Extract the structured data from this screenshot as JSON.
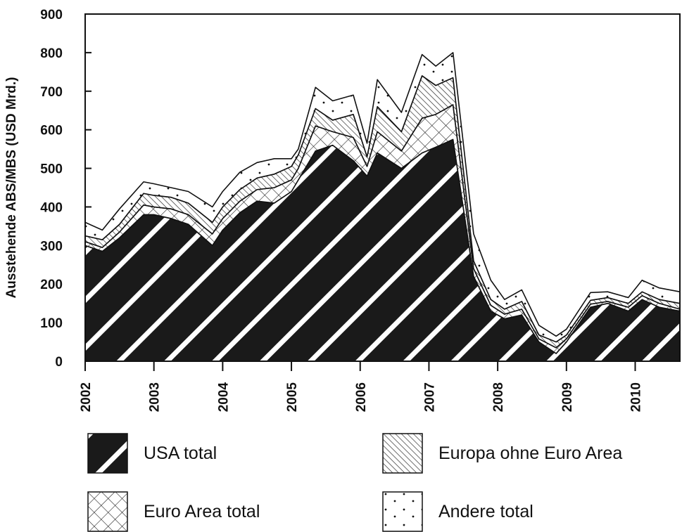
{
  "chart_data": {
    "type": "area",
    "stacked": true,
    "title": "",
    "xlabel": "",
    "ylabel": "Ausstehende ABS/MBS (USD Mrd.)",
    "ylim": [
      0,
      900
    ],
    "yticks": [
      0,
      100,
      200,
      300,
      400,
      500,
      600,
      700,
      800,
      900
    ],
    "xlim": [
      2002,
      2010.65
    ],
    "xticks": [
      "2002",
      "2003",
      "2004",
      "2005",
      "2006",
      "2007",
      "2008",
      "2009",
      "2010"
    ],
    "grid": false,
    "legend_position": "bottom",
    "x": [
      2002.0,
      2002.25,
      2002.5,
      2002.85,
      2003.0,
      2003.25,
      2003.5,
      2003.85,
      2004.0,
      2004.25,
      2004.5,
      2004.75,
      2005.0,
      2005.1,
      2005.35,
      2005.6,
      2005.9,
      2006.1,
      2006.25,
      2006.6,
      2006.9,
      2007.1,
      2007.35,
      2007.65,
      2007.9,
      2008.1,
      2008.35,
      2008.6,
      2008.85,
      2009.0,
      2009.35,
      2009.6,
      2009.9,
      2010.1,
      2010.35,
      2010.65
    ],
    "series": [
      {
        "name": "USA total",
        "values": [
          300,
          285,
          320,
          380,
          380,
          370,
          355,
          300,
          340,
          385,
          415,
          410,
          440,
          470,
          545,
          560,
          520,
          480,
          540,
          500,
          540,
          555,
          575,
          220,
          130,
          110,
          120,
          50,
          20,
          50,
          140,
          150,
          130,
          160,
          140,
          130
        ]
      },
      {
        "name": "Euro Area total",
        "values": [
          10,
          10,
          15,
          25,
          20,
          25,
          25,
          30,
          30,
          30,
          30,
          40,
          30,
          30,
          65,
          35,
          60,
          25,
          55,
          45,
          90,
          85,
          90,
          20,
          15,
          12,
          15,
          8,
          15,
          8,
          8,
          5,
          10,
          10,
          10,
          5
        ]
      },
      {
        "name": "Europa ohne Euro Area",
        "values": [
          15,
          20,
          20,
          30,
          30,
          30,
          30,
          30,
          30,
          30,
          30,
          35,
          35,
          35,
          45,
          30,
          60,
          25,
          65,
          50,
          110,
          75,
          70,
          20,
          15,
          13,
          20,
          10,
          15,
          10,
          10,
          10,
          10,
          10,
          10,
          15
        ]
      },
      {
        "name": "Andere total",
        "values": [
          35,
          25,
          40,
          30,
          30,
          25,
          30,
          40,
          40,
          45,
          40,
          40,
          20,
          15,
          55,
          50,
          50,
          35,
          70,
          50,
          55,
          50,
          65,
          70,
          50,
          25,
          30,
          25,
          15,
          15,
          20,
          15,
          15,
          30,
          30,
          30
        ]
      }
    ]
  },
  "legend": {
    "items": [
      {
        "label": "USA total",
        "pattern": "usa"
      },
      {
        "label": "Europa ohne Euro Area",
        "pattern": "europa"
      },
      {
        "label": "Euro Area total",
        "pattern": "euro"
      },
      {
        "label": "Andere total",
        "pattern": "andere"
      }
    ]
  }
}
